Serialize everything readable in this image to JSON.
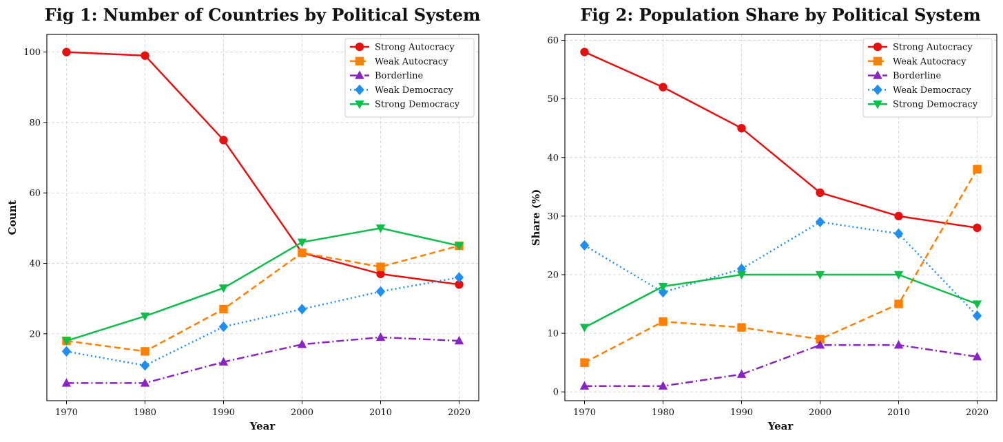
{
  "chart_data": [
    {
      "type": "line",
      "title": "Fig 1: Number of Countries by Political System",
      "xlabel": "Year",
      "ylabel": "Count",
      "x": [
        1970,
        1980,
        1990,
        2000,
        2010,
        2020
      ],
      "xlim": [
        1967.5,
        2022.5
      ],
      "ylim": [
        1,
        105
      ],
      "yticks": [
        20,
        40,
        60,
        80,
        100
      ],
      "grid": true,
      "legend": "top-right",
      "series": [
        {
          "name": "Strong Autocracy",
          "values": [
            100,
            99,
            75,
            43,
            37,
            34
          ]
        },
        {
          "name": "Weak Autocracy",
          "values": [
            18,
            15,
            27,
            43,
            39,
            45
          ]
        },
        {
          "name": "Borderline",
          "values": [
            6,
            6,
            12,
            17,
            19,
            18
          ]
        },
        {
          "name": "Weak Democracy",
          "values": [
            15,
            11,
            22,
            27,
            32,
            36
          ]
        },
        {
          "name": "Strong Democracy",
          "values": [
            18,
            25,
            33,
            46,
            50,
            45
          ]
        }
      ]
    },
    {
      "type": "line",
      "title": "Fig 2: Population Share by Political System",
      "xlabel": "Year",
      "ylabel": "Share (%)",
      "x": [
        1970,
        1980,
        1990,
        2000,
        2010,
        2020
      ],
      "xlim": [
        1967.5,
        2022.5
      ],
      "ylim": [
        -1.5,
        61
      ],
      "yticks": [
        0,
        10,
        20,
        30,
        40,
        50,
        60
      ],
      "grid": true,
      "legend": "top-right",
      "series": [
        {
          "name": "Strong Autocracy",
          "values": [
            58,
            52,
            45,
            34,
            30,
            28
          ]
        },
        {
          "name": "Weak Autocracy",
          "values": [
            5,
            12,
            11,
            9,
            15,
            38
          ]
        },
        {
          "name": "Borderline",
          "values": [
            1,
            1,
            3,
            8,
            8,
            6
          ]
        },
        {
          "name": "Weak Democracy",
          "values": [
            25,
            17,
            21,
            29,
            27,
            13
          ]
        },
        {
          "name": "Strong Democracy",
          "values": [
            11,
            18,
            20,
            20,
            20,
            15
          ]
        }
      ]
    }
  ],
  "series_styles": [
    {
      "color": "#e8100f",
      "marker": "circle",
      "dash": ""
    },
    {
      "color": "#ff8000",
      "marker": "square",
      "dash": "9,5"
    },
    {
      "color": "#8a23c4",
      "marker": "triangle-up",
      "dash": "11,4,2,4"
    },
    {
      "color": "#1e8ef2",
      "marker": "diamond",
      "dash": "2,4"
    },
    {
      "color": "#0ebd4a",
      "marker": "triangle-down",
      "dash": ""
    }
  ]
}
